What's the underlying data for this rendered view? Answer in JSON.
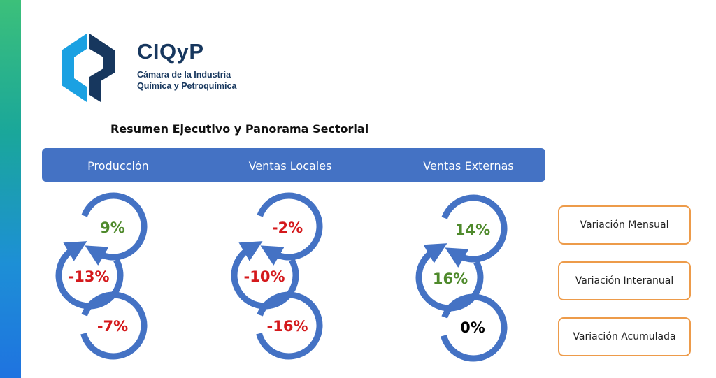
{
  "logo": {
    "name": "CIQyP",
    "subtitle_line1": "Cámara de la Industria",
    "subtitle_line2": "Química y Petroquímica",
    "colors": {
      "primary": "#17375e",
      "accent": "#1ba1e2"
    }
  },
  "title": "Resumen Ejecutivo y Panorama Sectorial",
  "colors": {
    "header_bar": "#4472c4",
    "arrow": "#4472c4",
    "positive": "#4f8a2c",
    "negative": "#d4191c",
    "neutral": "#000000",
    "legend_border": "#ed9b4a"
  },
  "columns": [
    {
      "header": "Producción",
      "values": [
        "9%",
        "-13%",
        "-7%"
      ],
      "signs": [
        "positive",
        "negative",
        "negative"
      ]
    },
    {
      "header": "Ventas Locales",
      "values": [
        "-2%",
        "-10%",
        "-16%"
      ],
      "signs": [
        "negative",
        "negative",
        "negative"
      ]
    },
    {
      "header": "Ventas Externas",
      "values": [
        "14%",
        "16%",
        "0%"
      ],
      "signs": [
        "positive",
        "positive",
        "neutral"
      ]
    }
  ],
  "legend": [
    "Variación Mensual",
    "Variación Interanual",
    "Variación Acumulada"
  ]
}
